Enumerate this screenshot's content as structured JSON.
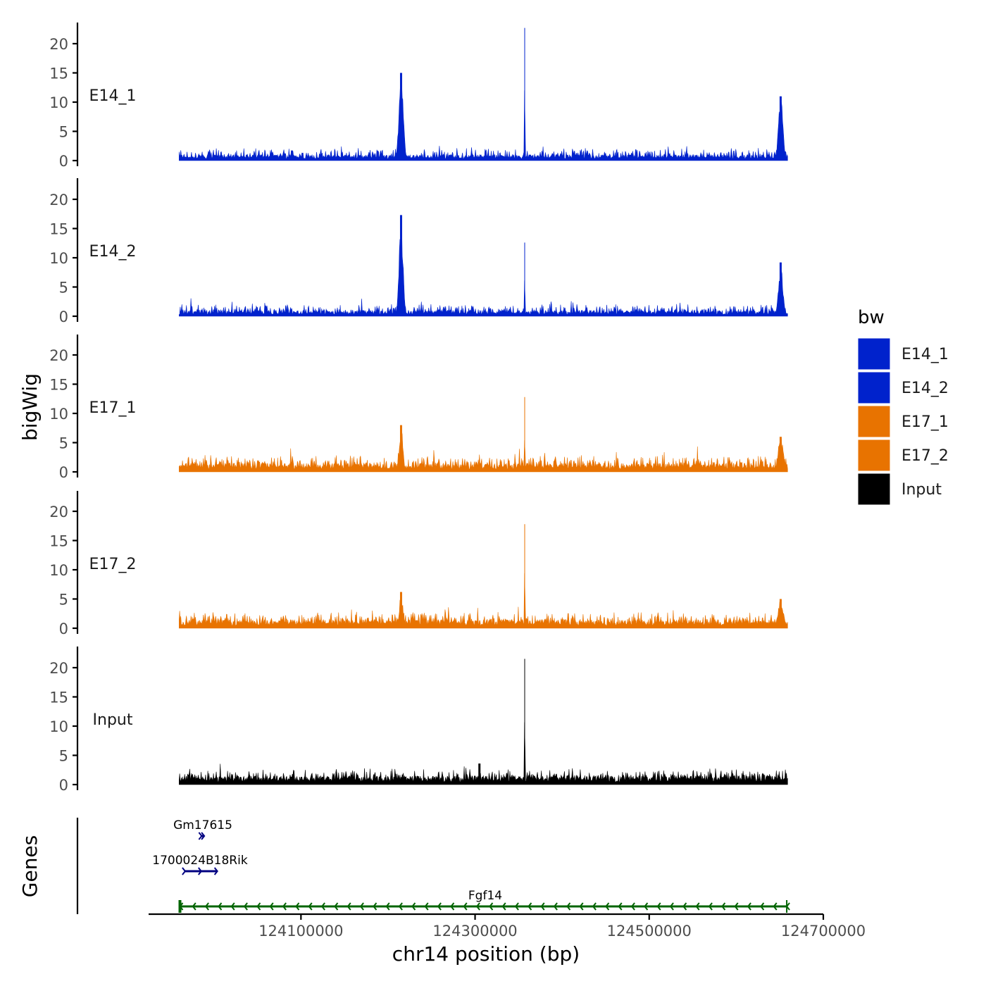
{
  "chart_data": {
    "type": "area",
    "ylabel": "bigWig",
    "xlabel": "chr14 position (bp)",
    "xlim": [
      123925000,
      124700000
    ],
    "ylim": [
      0,
      23.5
    ],
    "yticks": [
      0,
      5,
      10,
      15,
      20
    ],
    "xticks": [
      124100000,
      124300000,
      124500000,
      124700000
    ],
    "x_tick_labels": [
      "124100000",
      "124300000",
      "124500000",
      "124700000"
    ],
    "signal_range": [
      123960000,
      124659000
    ],
    "tracks": [
      {
        "name": "E14_1",
        "color": "#0022CC",
        "baseline": 0.8,
        "noise": 1.2,
        "peaks": [
          {
            "x": 124215000,
            "height": 15.0,
            "width": 2500
          },
          {
            "x": 124357000,
            "height": 22.7,
            "width": 250
          },
          {
            "x": 124651000,
            "height": 11.0,
            "width": 2500
          }
        ]
      },
      {
        "name": "E14_2",
        "color": "#0022CC",
        "baseline": 0.8,
        "noise": 1.2,
        "peaks": [
          {
            "x": 124215000,
            "height": 17.3,
            "width": 2200
          },
          {
            "x": 124357000,
            "height": 12.6,
            "width": 250
          },
          {
            "x": 124651000,
            "height": 9.2,
            "width": 2500
          }
        ]
      },
      {
        "name": "E17_1",
        "color": "#E87300",
        "baseline": 1.2,
        "noise": 1.4,
        "peaks": [
          {
            "x": 124215000,
            "height": 8.0,
            "width": 2000
          },
          {
            "x": 124357000,
            "height": 12.8,
            "width": 250
          },
          {
            "x": 124651000,
            "height": 6.0,
            "width": 3000
          }
        ]
      },
      {
        "name": "E17_2",
        "color": "#E87300",
        "baseline": 1.2,
        "noise": 1.4,
        "peaks": [
          {
            "x": 124215000,
            "height": 6.2,
            "width": 2000
          },
          {
            "x": 124357000,
            "height": 17.8,
            "width": 250
          },
          {
            "x": 124651000,
            "height": 5.0,
            "width": 3000
          }
        ]
      },
      {
        "name": "Input",
        "color": "#000000",
        "baseline": 1.2,
        "noise": 1.3,
        "peaks": [
          {
            "x": 124357000,
            "height": 21.5,
            "width": 250
          },
          {
            "x": 124305000,
            "height": 3.6,
            "width": 600
          }
        ]
      }
    ],
    "genes_panel_label": "Genes",
    "genes": [
      {
        "name": "Gm17615",
        "start": 123986000,
        "end": 123989000,
        "strand": "+",
        "color": "#000080",
        "row": 1
      },
      {
        "name": "1700024B18Rik",
        "start": 123967000,
        "end": 124004000,
        "strand": "+",
        "color": "#000080",
        "row": 2
      },
      {
        "name": "Fgf14",
        "start": 123961000,
        "end": 124658000,
        "strand": "-",
        "color": "#006400",
        "row": 3
      }
    ],
    "legend": {
      "title": "bw",
      "entries": [
        {
          "label": "E14_1",
          "color": "#0022CC"
        },
        {
          "label": "E14_2",
          "color": "#0022CC"
        },
        {
          "label": "E17_1",
          "color": "#E87300"
        },
        {
          "label": "E17_2",
          "color": "#E87300"
        },
        {
          "label": "Input",
          "color": "#000000"
        }
      ]
    }
  }
}
